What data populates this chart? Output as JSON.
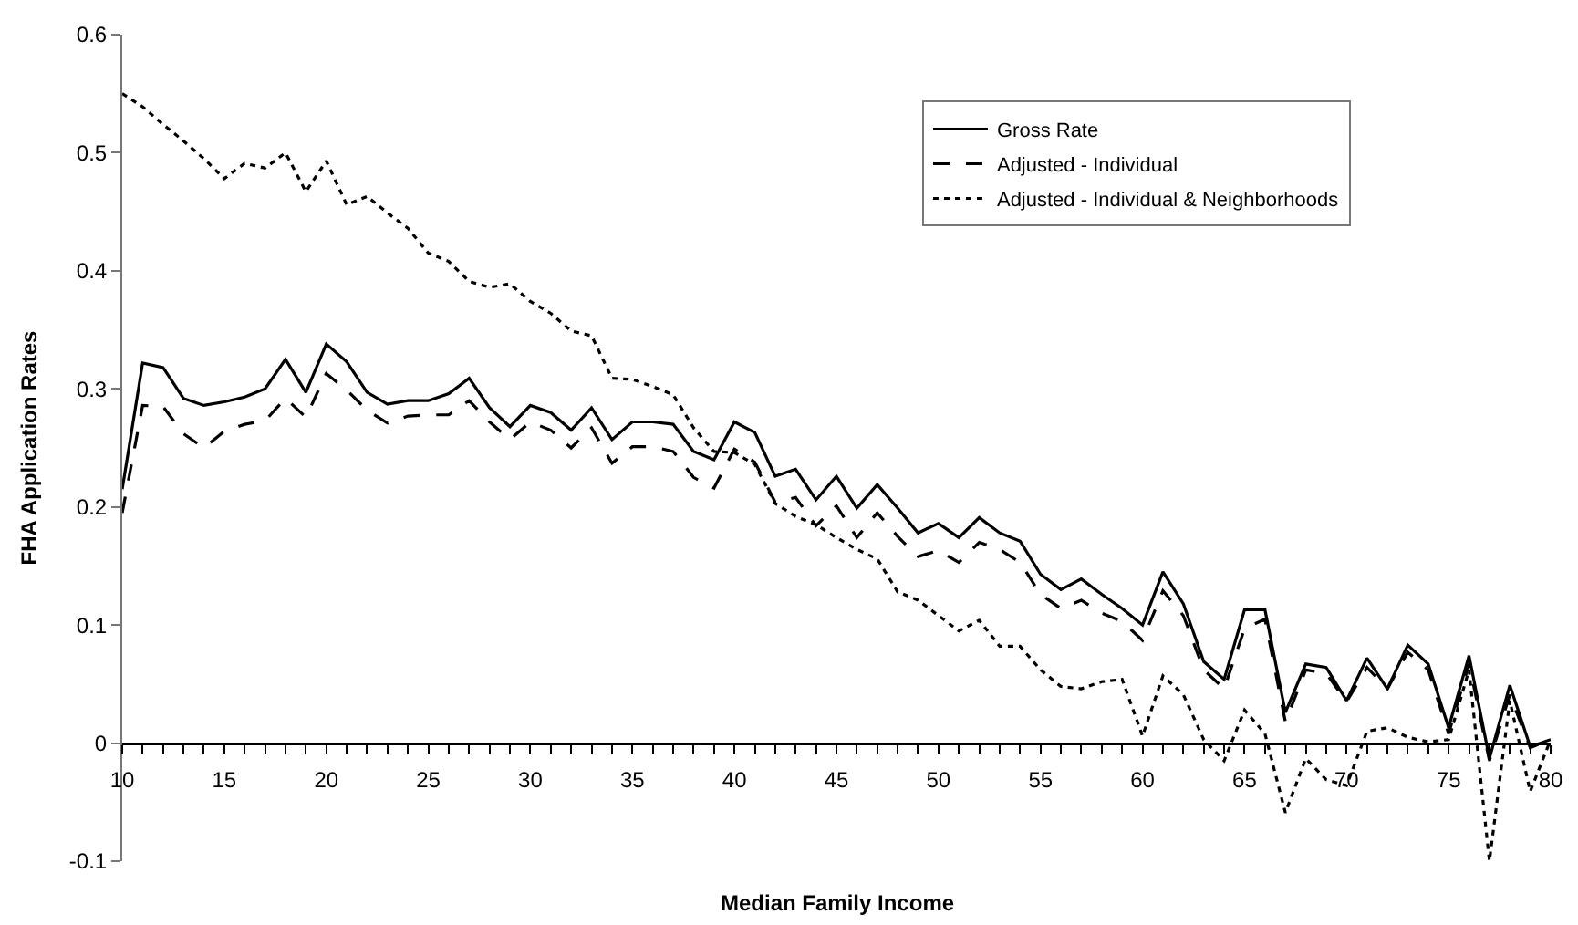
{
  "chart_data": {
    "type": "line",
    "xlabel": "Median Family Income",
    "ylabel": "FHA Application Rates",
    "x": [
      10,
      11,
      12,
      13,
      14,
      15,
      16,
      17,
      18,
      19,
      20,
      21,
      22,
      23,
      24,
      25,
      26,
      27,
      28,
      29,
      30,
      31,
      32,
      33,
      34,
      35,
      36,
      37,
      38,
      39,
      40,
      41,
      42,
      43,
      44,
      45,
      46,
      47,
      48,
      49,
      50,
      51,
      52,
      53,
      54,
      55,
      56,
      57,
      58,
      59,
      60,
      61,
      62,
      63,
      64,
      65,
      66,
      67,
      68,
      69,
      70,
      71,
      72,
      73,
      74,
      75,
      76,
      77,
      78,
      79,
      80
    ],
    "series": [
      {
        "name": "Gross Rate",
        "color": "#000000",
        "line_style": "solid",
        "values": [
          0.215,
          0.322,
          0.318,
          0.292,
          0.286,
          0.289,
          0.293,
          0.3,
          0.325,
          0.297,
          0.338,
          0.323,
          0.297,
          0.287,
          0.29,
          0.29,
          0.296,
          0.309,
          0.284,
          0.268,
          0.286,
          0.28,
          0.265,
          0.284,
          0.257,
          0.272,
          0.272,
          0.27,
          0.247,
          0.24,
          0.272,
          0.263,
          0.226,
          0.232,
          0.206,
          0.226,
          0.199,
          0.219,
          0.199,
          0.178,
          0.186,
          0.174,
          0.191,
          0.178,
          0.171,
          0.143,
          0.13,
          0.139,
          0.126,
          0.114,
          0.1,
          0.145,
          0.118,
          0.069,
          0.054,
          0.113,
          0.113,
          0.026,
          0.067,
          0.064,
          0.036,
          0.072,
          0.046,
          0.083,
          0.067,
          0.013,
          0.074,
          -0.013,
          0.049,
          -0.003,
          0.003
        ]
      },
      {
        "name": "Adjusted - Individual",
        "color": "#000000",
        "line_style": "dashed",
        "values": [
          0.195,
          0.286,
          0.285,
          0.262,
          0.25,
          0.264,
          0.27,
          0.273,
          0.292,
          0.276,
          0.313,
          0.299,
          0.282,
          0.271,
          0.277,
          0.278,
          0.278,
          0.29,
          0.272,
          0.257,
          0.272,
          0.265,
          0.25,
          0.267,
          0.237,
          0.251,
          0.251,
          0.247,
          0.225,
          0.216,
          0.249,
          0.238,
          0.204,
          0.208,
          0.184,
          0.201,
          0.174,
          0.195,
          0.175,
          0.158,
          0.163,
          0.153,
          0.17,
          0.164,
          0.153,
          0.126,
          0.114,
          0.121,
          0.11,
          0.103,
          0.087,
          0.129,
          0.108,
          0.062,
          0.046,
          0.097,
          0.105,
          0.018,
          0.062,
          0.059,
          0.035,
          0.064,
          0.046,
          0.077,
          0.062,
          0.008,
          0.067,
          -0.015,
          0.041,
          -0.004,
          0.003
        ]
      },
      {
        "name": "Adjusted - Individual & Neighborhoods",
        "color": "#000000",
        "line_style": "dotted",
        "values": [
          0.55,
          0.539,
          0.524,
          0.51,
          0.495,
          0.478,
          0.491,
          0.487,
          0.5,
          0.467,
          0.493,
          0.456,
          0.463,
          0.449,
          0.436,
          0.415,
          0.408,
          0.391,
          0.386,
          0.389,
          0.374,
          0.364,
          0.349,
          0.345,
          0.309,
          0.308,
          0.302,
          0.295,
          0.267,
          0.247,
          0.246,
          0.236,
          0.203,
          0.192,
          0.185,
          0.174,
          0.164,
          0.156,
          0.128,
          0.121,
          0.108,
          0.095,
          0.104,
          0.082,
          0.082,
          0.062,
          0.048,
          0.046,
          0.052,
          0.054,
          0.006,
          0.057,
          0.041,
          0.003,
          -0.015,
          0.028,
          0.008,
          -0.059,
          -0.013,
          -0.031,
          -0.036,
          0.01,
          0.013,
          0.005,
          0.001,
          0.003,
          0.062,
          -0.1,
          0.036,
          -0.041,
          0.003
        ]
      }
    ],
    "xlim": [
      10,
      80
    ],
    "xticks": [
      10,
      {
        "value": 11,
        "label": null
      },
      {
        "value": 12,
        "label": null
      },
      {
        "value": 13,
        "label": null
      },
      {
        "value": 14,
        "label": null
      },
      15,
      {
        "value": 16,
        "label": null
      },
      {
        "value": 17,
        "label": null
      },
      {
        "value": 18,
        "label": null
      },
      {
        "value": 19,
        "label": null
      },
      20,
      {
        "value": 21,
        "label": null
      },
      {
        "value": 22,
        "label": null
      },
      {
        "value": 23,
        "label": null
      },
      {
        "value": 24,
        "label": null
      },
      25,
      {
        "value": 26,
        "label": null
      },
      {
        "value": 27,
        "label": null
      },
      {
        "value": 28,
        "label": null
      },
      {
        "value": 29,
        "label": null
      },
      30,
      {
        "value": 31,
        "label": null
      },
      {
        "value": 32,
        "label": null
      },
      {
        "value": 33,
        "label": null
      },
      {
        "value": 34,
        "label": null
      },
      35,
      {
        "value": 36,
        "label": null
      },
      {
        "value": 37,
        "label": null
      },
      {
        "value": 38,
        "label": null
      },
      {
        "value": 39,
        "label": null
      },
      40,
      {
        "value": 41,
        "label": null
      },
      {
        "value": 42,
        "label": null
      },
      {
        "value": 43,
        "label": null
      },
      {
        "value": 44,
        "label": null
      },
      45,
      {
        "value": 46,
        "label": null
      },
      {
        "value": 47,
        "label": null
      },
      {
        "value": 48,
        "label": null
      },
      {
        "value": 49,
        "label": null
      },
      50,
      {
        "value": 51,
        "label": null
      },
      {
        "value": 52,
        "label": null
      },
      {
        "value": 53,
        "label": null
      },
      {
        "value": 54,
        "label": null
      },
      55,
      {
        "value": 56,
        "label": null
      },
      {
        "value": 57,
        "label": null
      },
      {
        "value": 58,
        "label": null
      },
      {
        "value": 59,
        "label": null
      },
      60,
      {
        "value": 61,
        "label": null
      },
      {
        "value": 62,
        "label": null
      },
      {
        "value": 63,
        "label": null
      },
      {
        "value": 64,
        "label": null
      },
      65,
      {
        "value": 66,
        "label": null
      },
      {
        "value": 67,
        "label": null
      },
      {
        "value": 68,
        "label": null
      },
      {
        "value": 69,
        "label": null
      },
      70,
      {
        "value": 71,
        "label": null
      },
      {
        "value": 72,
        "label": null
      },
      {
        "value": 73,
        "label": null
      },
      {
        "value": 74,
        "label": null
      },
      75,
      {
        "value": 76,
        "label": null
      },
      {
        "value": 77,
        "label": null
      },
      {
        "value": 78,
        "label": null
      },
      {
        "value": 79,
        "label": null
      },
      80
    ],
    "ylim": [
      -0.1,
      0.6
    ],
    "yticks": [
      -0.1,
      0,
      0.1,
      0.2,
      0.3,
      0.4,
      0.5,
      0.6
    ],
    "grid": false,
    "legend": "top right",
    "marker": "none"
  }
}
